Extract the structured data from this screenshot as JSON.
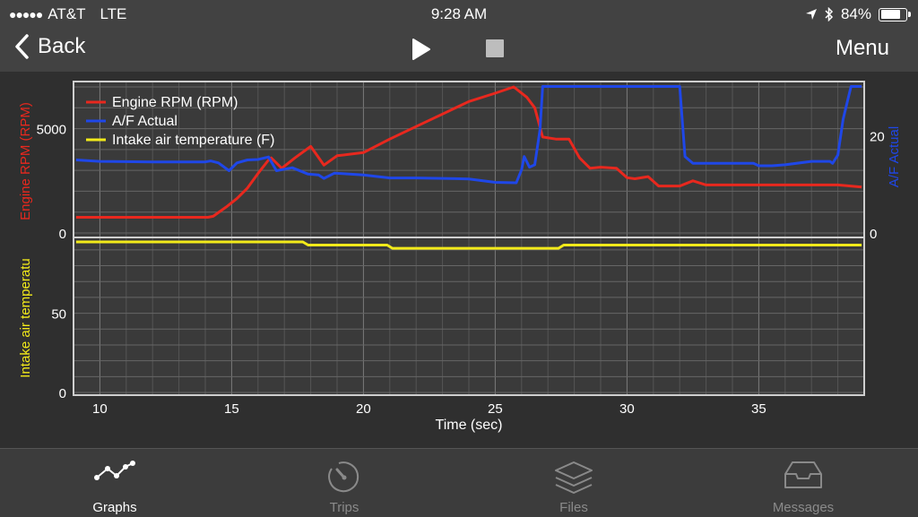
{
  "status_bar": {
    "carrier": "AT&T",
    "network": "LTE",
    "time": "9:28 AM",
    "battery": "84%",
    "battery_level": 0.84
  },
  "nav": {
    "back_label": "Back",
    "menu_label": "Menu"
  },
  "chart_data": [
    {
      "type": "line",
      "xlabel": "Time (sec)",
      "xlim": [
        9,
        39
      ],
      "x_ticks": [
        10,
        15,
        20,
        25,
        30,
        35
      ],
      "ylabel_left": "Engine RPM (RPM)",
      "ylabel_right": "A/F Actual",
      "ylim_left": [
        0,
        7000
      ],
      "y_ticks_left": [
        0,
        5000
      ],
      "ylim_right": [
        0,
        30
      ],
      "y_ticks_right": [
        0,
        20
      ],
      "grid": true,
      "legend": "top-left",
      "legend_entries": [
        "Engine RPM (RPM)",
        "A/F Actual",
        "Intake air temperature (F)"
      ],
      "series": [
        {
          "name": "Engine RPM (RPM)",
          "color": "#e8281e",
          "axis": "left",
          "x": [
            9.1,
            14.1,
            14.3,
            14.8,
            15.2,
            15.6,
            16.0,
            16.4,
            16.5,
            16.9,
            17.4,
            18.0,
            18.5,
            19.0,
            20.0,
            21.0,
            22.0,
            23.0,
            24.0,
            25.0,
            25.7,
            26.2,
            26.5,
            26.8,
            27.3,
            27.8,
            28.2,
            28.6,
            29.0,
            29.6,
            30.0,
            30.3,
            30.8,
            31.2,
            31.6,
            32.0,
            32.5,
            33.0,
            34.0,
            35.0,
            36.0,
            37.0,
            38.0,
            38.9
          ],
          "y": [
            750,
            750,
            800,
            1250,
            1650,
            2150,
            2850,
            3500,
            3600,
            3100,
            3600,
            4150,
            3250,
            3700,
            3850,
            4500,
            5100,
            5700,
            6300,
            6700,
            7000,
            6500,
            6000,
            4600,
            4500,
            4500,
            3600,
            3100,
            3150,
            3100,
            2650,
            2600,
            2700,
            2250,
            2250,
            2250,
            2500,
            2300,
            2300,
            2300,
            2300,
            2300,
            2300,
            2200
          ]
        },
        {
          "name": "A/F Actual",
          "color": "#1f47e8",
          "axis": "right",
          "x": [
            9.1,
            10,
            12,
            14,
            14.2,
            14.5,
            14.9,
            15.2,
            15.6,
            16.0,
            16.4,
            16.7,
            17.3,
            17.9,
            18.3,
            18.5,
            18.9,
            19.2,
            20.0,
            21.0,
            22.0,
            23.0,
            24.0,
            25.0,
            25.8,
            26.0,
            26.1,
            26.3,
            26.5,
            26.7,
            26.8,
            27.0,
            28.0,
            30.0,
            32.0,
            32.2,
            32.5,
            33.0,
            34.0,
            34.8,
            35.0,
            35.5,
            36.0,
            37.0,
            37.7,
            37.8,
            38.0,
            38.2,
            38.5,
            38.9
          ],
          "y": [
            15,
            14.7,
            14.6,
            14.6,
            14.8,
            14.4,
            12.8,
            14.4,
            15,
            15.1,
            15.6,
            12.8,
            13.4,
            12.1,
            11.9,
            11.2,
            12.3,
            12.2,
            11.9,
            11.3,
            11.3,
            11.2,
            11.1,
            10.4,
            10.3,
            13.0,
            15.7,
            13.5,
            14.0,
            21.3,
            30.1,
            30.1,
            30.1,
            30.1,
            30.1,
            15.7,
            14.3,
            14.3,
            14.3,
            14.3,
            13.8,
            13.8,
            14.0,
            14.7,
            14.7,
            14.3,
            16.0,
            23.4,
            30.1,
            30.1
          ]
        },
        {
          "name": "Intake air temperature (F)",
          "color": "#f2ea1a",
          "axis": "bottom-left",
          "ylabel": "Intake air temperatu",
          "ylim": [
            0,
            95
          ],
          "y_ticks": [
            0,
            50
          ],
          "x": [
            9.1,
            17.7,
            17.9,
            20.9,
            21.1,
            27.4,
            27.6,
            38.9
          ],
          "y": [
            95,
            95,
            93,
            93,
            91,
            91,
            93,
            93
          ]
        }
      ]
    }
  ],
  "tabs": [
    {
      "label": "Graphs",
      "icon": "graph-icon",
      "color": "#ffffff"
    },
    {
      "label": "Trips",
      "icon": "gauge-icon",
      "color": "#8a8a8a"
    },
    {
      "label": "Files",
      "icon": "layers-icon",
      "color": "#8a8a8a"
    },
    {
      "label": "Messages",
      "icon": "inbox-tray-icon",
      "color": "#8a8a8a"
    }
  ]
}
